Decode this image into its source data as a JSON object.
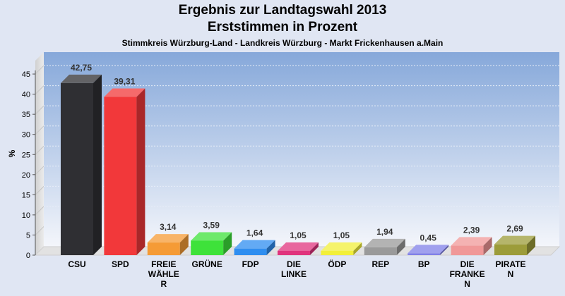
{
  "header": {
    "title_line1": "Ergebnis zur Landtagswahl 2013",
    "title_line2": "Erststimmen in Prozent",
    "subtitle": "Stimmkreis Würzburg-Land - Landkreis Würzburg - Markt Frickenhausen a.Main"
  },
  "chart_data": {
    "type": "bar",
    "title": "Ergebnis zur Landtagswahl 2013",
    "subtitle": "Erststimmen in Prozent",
    "ylabel": "%",
    "xlabel": "",
    "ylim": [
      0,
      48
    ],
    "yticks": [
      0,
      5,
      10,
      15,
      20,
      25,
      30,
      35,
      40,
      45
    ],
    "grid": true,
    "categories": [
      [
        "CSU"
      ],
      [
        "SPD"
      ],
      [
        "FREIE",
        "WÄHLE",
        "R"
      ],
      [
        "GRÜNE"
      ],
      [
        "FDP"
      ],
      [
        "DIE",
        "LINKE"
      ],
      [
        "ÖDP"
      ],
      [
        "REP"
      ],
      [
        "BP"
      ],
      [
        "DIE",
        "FRANKE",
        "N"
      ],
      [
        "PIRATE",
        "N"
      ]
    ],
    "values": [
      42.75,
      39.31,
      3.14,
      3.59,
      1.64,
      1.05,
      1.05,
      1.94,
      0.45,
      2.39,
      2.69
    ],
    "value_labels": [
      "42,75",
      "39,31",
      "3,14",
      "3,59",
      "1,64",
      "1,05",
      "1,05",
      "1,94",
      "0,45",
      "2,39",
      "2,69"
    ],
    "colors": [
      "#2f2f33",
      "#f2383a",
      "#f59b36",
      "#3ee23a",
      "#2f8ef0",
      "#e0347d",
      "#f2ef3a",
      "#9a9a9a",
      "#8080e8",
      "#f09898",
      "#9c9c3a"
    ]
  }
}
